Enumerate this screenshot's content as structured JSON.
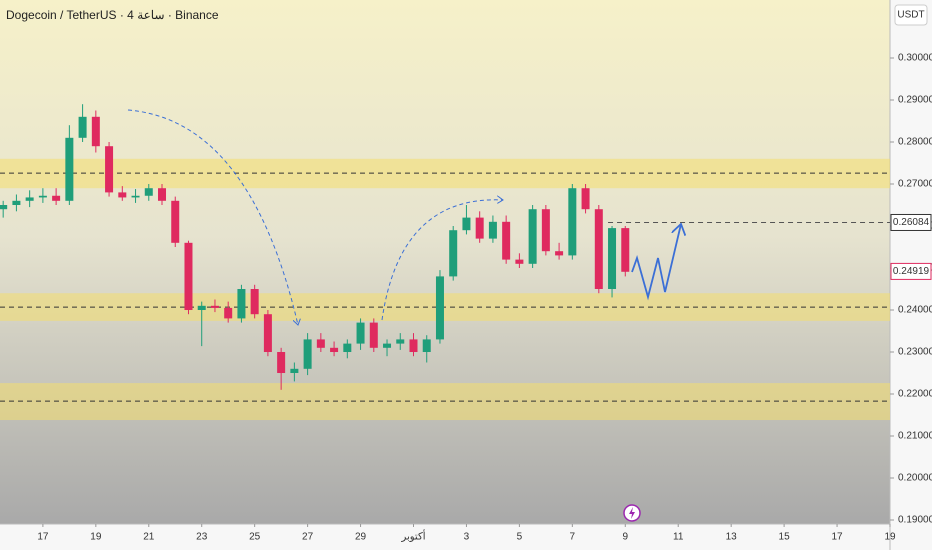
{
  "chart_data": {
    "type": "candlestick",
    "title": "Dogecoin / TetherUS · 4 ساعة · Binance",
    "currency": "USDT",
    "up_color": "#1f9e7a",
    "down_color": "#df2a5f",
    "x": [
      15.5,
      16,
      16.5,
      17,
      17.5,
      18,
      18.5,
      19,
      19.5,
      20,
      20.5,
      21,
      21.5,
      22,
      22.5,
      23,
      23.5,
      24,
      24.5,
      25,
      25.5,
      26,
      26.5,
      27,
      27.5,
      28,
      28.5,
      29,
      29.5,
      30,
      30.5,
      31,
      31.5,
      32,
      32.5,
      33,
      33.5,
      34,
      34.5,
      35,
      35.5,
      36,
      36.5,
      37,
      37.5,
      38,
      38.5,
      39
    ],
    "open": [
      0.264,
      0.265,
      0.266,
      0.2668,
      0.2672,
      0.266,
      0.281,
      0.286,
      0.279,
      0.268,
      0.2668,
      0.2672,
      0.269,
      0.266,
      0.256,
      0.24,
      0.241,
      0.2405,
      0.238,
      0.245,
      0.239,
      0.23,
      0.225,
      0.226,
      0.233,
      0.231,
      0.23,
      0.232,
      0.237,
      0.231,
      0.232,
      0.233,
      0.23,
      0.233,
      0.248,
      0.259,
      0.262,
      0.257,
      0.261,
      0.252,
      0.251,
      0.264,
      0.254,
      0.253,
      0.269,
      0.264,
      0.245,
      0.2595
    ],
    "high": [
      0.266,
      0.2675,
      0.2685,
      0.269,
      0.269,
      0.284,
      0.289,
      0.2875,
      0.28,
      0.2695,
      0.2688,
      0.27,
      0.27,
      0.267,
      0.2565,
      0.242,
      0.2425,
      0.242,
      0.246,
      0.246,
      0.24,
      0.231,
      0.2275,
      0.2345,
      0.2345,
      0.2325,
      0.233,
      0.238,
      0.238,
      0.233,
      0.2345,
      0.2345,
      0.234,
      0.2495,
      0.26,
      0.265,
      0.2635,
      0.2625,
      0.2625,
      0.2535,
      0.265,
      0.265,
      0.256,
      0.27,
      0.27,
      0.265,
      0.26,
      0.26
    ],
    "low": [
      0.262,
      0.2635,
      0.2645,
      0.2655,
      0.265,
      0.265,
      0.28,
      0.2775,
      0.267,
      0.266,
      0.2655,
      0.266,
      0.265,
      0.255,
      0.239,
      0.2314,
      0.2395,
      0.237,
      0.237,
      0.238,
      0.229,
      0.221,
      0.223,
      0.2245,
      0.23,
      0.229,
      0.2285,
      0.2305,
      0.23,
      0.229,
      0.2305,
      0.229,
      0.2275,
      0.232,
      0.247,
      0.258,
      0.256,
      0.256,
      0.251,
      0.25,
      0.25,
      0.253,
      0.252,
      0.252,
      0.263,
      0.244,
      0.243,
      0.248
    ],
    "close": [
      0.265,
      0.266,
      0.2668,
      0.2672,
      0.266,
      0.281,
      0.286,
      0.279,
      0.268,
      0.2668,
      0.2672,
      0.269,
      0.266,
      0.256,
      0.24,
      0.241,
      0.2405,
      0.238,
      0.245,
      0.239,
      0.23,
      0.225,
      0.226,
      0.233,
      0.231,
      0.23,
      0.232,
      0.237,
      0.231,
      0.232,
      0.233,
      0.23,
      0.233,
      0.248,
      0.259,
      0.262,
      0.257,
      0.261,
      0.252,
      0.251,
      0.264,
      0.254,
      0.253,
      0.269,
      0.264,
      0.245,
      0.2595,
      0.2491
    ],
    "xlim": [
      15.38,
      49.0
    ],
    "xticks": [
      {
        "value": 17,
        "label": "17"
      },
      {
        "value": 19,
        "label": "19"
      },
      {
        "value": 21,
        "label": "21"
      },
      {
        "value": 23,
        "label": "23"
      },
      {
        "value": 25,
        "label": "25"
      },
      {
        "value": 27,
        "label": "27"
      },
      {
        "value": 29,
        "label": "29"
      },
      {
        "value": 31,
        "label": "أكتوبر"
      },
      {
        "value": 33,
        "label": "3"
      },
      {
        "value": 35,
        "label": "5"
      },
      {
        "value": 37,
        "label": "7"
      },
      {
        "value": 39,
        "label": "9"
      },
      {
        "value": 41,
        "label": "11"
      },
      {
        "value": 43,
        "label": "13"
      },
      {
        "value": 45,
        "label": "15"
      },
      {
        "value": 47,
        "label": "17"
      },
      {
        "value": 49,
        "label": "19"
      }
    ],
    "ylim": [
      0.18905,
      0.31381
    ],
    "yticks": [
      {
        "value": 0.19,
        "label": "0.19000"
      },
      {
        "value": 0.2,
        "label": "0.20000"
      },
      {
        "value": 0.21,
        "label": "0.21000"
      },
      {
        "value": 0.22,
        "label": "0.22000"
      },
      {
        "value": 0.23,
        "label": "0.23000"
      },
      {
        "value": 0.24,
        "label": "0.24000"
      },
      {
        "value": 0.25,
        "label": "0.25000"
      },
      {
        "value": 0.26,
        "label": "0.26000"
      },
      {
        "value": 0.27,
        "label": "0.27000"
      },
      {
        "value": 0.28,
        "label": "0.28000"
      },
      {
        "value": 0.29,
        "label": "0.29000"
      },
      {
        "value": 0.3,
        "label": "0.30000"
      }
    ],
    "zones": [
      [
        0.269,
        0.276
      ],
      [
        0.2374,
        0.244
      ],
      [
        0.2138,
        0.2226
      ]
    ],
    "levels": [
      0.2726,
      0.2407,
      0.2183
    ],
    "price_markers": [
      {
        "value": 0.26084,
        "label": "0.26084"
      },
      {
        "value": 0.24919,
        "label": "0.24919"
      }
    ]
  }
}
